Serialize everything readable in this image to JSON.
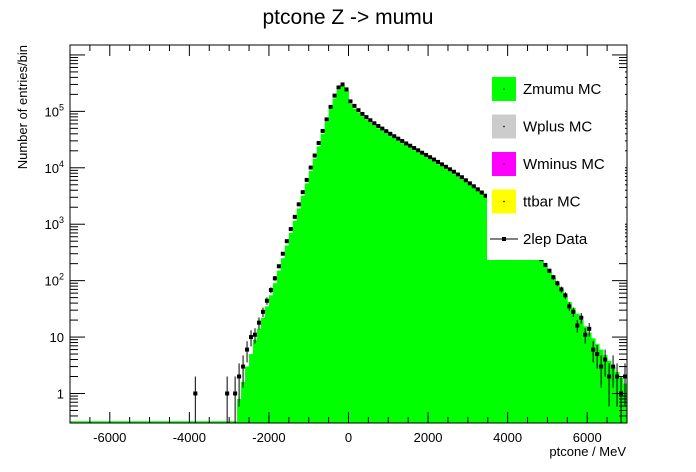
{
  "chart_data": {
    "type": "bar",
    "title": "ptcone Z -> mumu",
    "xlabel": "ptcone / MeV",
    "ylabel": "Number of entries/bin",
    "xlim": [
      -7000,
      7000
    ],
    "ylim": [
      0.3,
      1500000
    ],
    "y_scale": "log",
    "x_ticks": [
      -6000,
      -4000,
      -2000,
      0,
      2000,
      4000,
      6000
    ],
    "y_ticks": [
      {
        "value": 1,
        "label": "1"
      },
      {
        "value": 10,
        "label": "10"
      },
      {
        "value": 100,
        "label": "10^2"
      },
      {
        "value": 1000,
        "label": "10^3"
      },
      {
        "value": 10000,
        "label": "10^4"
      },
      {
        "value": 100000,
        "label": "10^5"
      }
    ],
    "legend_position": "top-right",
    "series": [
      {
        "name": "Zmumu MC",
        "color": "#00ff00",
        "style": "filled-histogram"
      },
      {
        "name": "Wplus MC",
        "color": "#cccccc",
        "style": "filled-histogram"
      },
      {
        "name": "Wminus MC",
        "color": "#ff00ff",
        "style": "filled-histogram"
      },
      {
        "name": "ttbar MC",
        "color": "#ffff00",
        "style": "filled-histogram"
      },
      {
        "name": "2lep Data",
        "color": "#000000",
        "style": "points-with-errors"
      }
    ],
    "bin_width": 100,
    "histogram_bins": [
      [
        -2750,
        0.8
      ],
      [
        -2650,
        1.6
      ],
      [
        -2550,
        3
      ],
      [
        -2450,
        5
      ],
      [
        -2350,
        9
      ],
      [
        -2250,
        14
      ],
      [
        -2150,
        22
      ],
      [
        -2050,
        35
      ],
      [
        -1950,
        55
      ],
      [
        -1850,
        90
      ],
      [
        -1750,
        150
      ],
      [
        -1650,
        250
      ],
      [
        -1550,
        420
      ],
      [
        -1450,
        700
      ],
      [
        -1350,
        1150
      ],
      [
        -1250,
        1900
      ],
      [
        -1150,
        3200
      ],
      [
        -1050,
        5300
      ],
      [
        -950,
        8800
      ],
      [
        -850,
        14500
      ],
      [
        -750,
        24000
      ],
      [
        -650,
        40000
      ],
      [
        -550,
        65000
      ],
      [
        -450,
        110000
      ],
      [
        -350,
        170000
      ],
      [
        -250,
        240000
      ],
      [
        -150,
        280000
      ],
      [
        -50,
        230000
      ],
      [
        50,
        135000
      ],
      [
        150,
        112000
      ],
      [
        250,
        95000
      ],
      [
        350,
        82000
      ],
      [
        450,
        72000
      ],
      [
        550,
        63000
      ],
      [
        650,
        56000
      ],
      [
        750,
        50000
      ],
      [
        850,
        45000
      ],
      [
        950,
        40500
      ],
      [
        1050,
        36500
      ],
      [
        1150,
        33000
      ],
      [
        1250,
        30000
      ],
      [
        1350,
        27200
      ],
      [
        1450,
        24800
      ],
      [
        1550,
        22500
      ],
      [
        1650,
        20500
      ],
      [
        1750,
        18700
      ],
      [
        1850,
        17000
      ],
      [
        1950,
        15500
      ],
      [
        2050,
        14100
      ],
      [
        2150,
        12800
      ],
      [
        2250,
        11600
      ],
      [
        2350,
        10500
      ],
      [
        2450,
        9500
      ],
      [
        2550,
        8600
      ],
      [
        2650,
        7700
      ],
      [
        2750,
        6900
      ],
      [
        2850,
        6200
      ],
      [
        2950,
        5500
      ],
      [
        3050,
        4900
      ],
      [
        3150,
        4350
      ],
      [
        3250,
        3850
      ],
      [
        3350,
        3400
      ],
      [
        3450,
        3000
      ],
      [
        3550,
        2600
      ],
      [
        3650,
        2250
      ],
      [
        3750,
        1950
      ],
      [
        3850,
        1650
      ],
      [
        3950,
        1400
      ],
      [
        4050,
        1180
      ],
      [
        4150,
        980
      ],
      [
        4250,
        810
      ],
      [
        4350,
        665
      ],
      [
        4450,
        540
      ],
      [
        4550,
        440
      ],
      [
        4650,
        355
      ],
      [
        4750,
        285
      ],
      [
        4850,
        228
      ],
      [
        4950,
        180
      ],
      [
        5050,
        142
      ],
      [
        5150,
        112
      ],
      [
        5250,
        88
      ],
      [
        5350,
        69
      ],
      [
        5450,
        54
      ],
      [
        5550,
        42
      ],
      [
        5650,
        33
      ],
      [
        5750,
        26
      ],
      [
        5850,
        20
      ],
      [
        5950,
        15.5
      ],
      [
        6050,
        12
      ],
      [
        6150,
        9.5
      ],
      [
        6250,
        7.5
      ],
      [
        6350,
        6
      ],
      [
        6450,
        4.8
      ],
      [
        6550,
        3.8
      ],
      [
        6650,
        3
      ],
      [
        6750,
        2.4
      ],
      [
        6850,
        1.9
      ],
      [
        6950,
        1.5
      ]
    ],
    "data_points": [
      [
        -3850,
        1
      ],
      [
        -3050,
        1
      ],
      [
        -2850,
        1
      ],
      [
        -2750,
        2
      ],
      [
        -2650,
        3
      ],
      [
        -2550,
        6
      ],
      [
        -2450,
        10
      ],
      [
        -2350,
        11
      ],
      [
        -2250,
        18
      ],
      [
        -2150,
        28
      ],
      [
        -2050,
        44
      ],
      [
        -1950,
        68
      ],
      [
        -1850,
        110
      ],
      [
        -1750,
        180
      ],
      [
        -1650,
        300
      ],
      [
        -1550,
        500
      ],
      [
        -1450,
        820
      ],
      [
        -1350,
        1350
      ],
      [
        -1250,
        2250
      ],
      [
        -1150,
        3700
      ],
      [
        -1050,
        6100
      ],
      [
        -950,
        10100
      ],
      [
        -850,
        16500
      ],
      [
        -750,
        27500
      ],
      [
        -650,
        45000
      ],
      [
        -550,
        72000
      ],
      [
        -450,
        120000
      ],
      [
        -350,
        190000
      ],
      [
        -250,
        265000
      ],
      [
        -150,
        300000
      ],
      [
        -50,
        245000
      ],
      [
        50,
        150000
      ],
      [
        150,
        125000
      ],
      [
        250,
        105000
      ],
      [
        350,
        90000
      ],
      [
        450,
        79000
      ],
      [
        550,
        69500
      ],
      [
        650,
        61500
      ],
      [
        750,
        55000
      ],
      [
        850,
        49500
      ],
      [
        950,
        44500
      ],
      [
        1050,
        40000
      ],
      [
        1150,
        36200
      ],
      [
        1250,
        32800
      ],
      [
        1350,
        29800
      ],
      [
        1450,
        27000
      ],
      [
        1550,
        24600
      ],
      [
        1650,
        22400
      ],
      [
        1750,
        20400
      ],
      [
        1850,
        18500
      ],
      [
        1950,
        16900
      ],
      [
        2050,
        15400
      ],
      [
        2150,
        14000
      ],
      [
        2250,
        12700
      ],
      [
        2350,
        11500
      ],
      [
        2450,
        10400
      ],
      [
        2550,
        9400
      ],
      [
        2650,
        8500
      ],
      [
        2750,
        7600
      ],
      [
        2850,
        6800
      ],
      [
        2950,
        6000
      ],
      [
        3050,
        5300
      ],
      [
        3150,
        4700
      ],
      [
        3250,
        4150
      ],
      [
        3350,
        3650
      ],
      [
        3450,
        3200
      ],
      [
        3550,
        2800
      ],
      [
        3650,
        2400
      ],
      [
        3750,
        2050
      ],
      [
        3850,
        1750
      ],
      [
        3950,
        1480
      ],
      [
        4050,
        1240
      ],
      [
        4150,
        1030
      ],
      [
        4250,
        850
      ],
      [
        4350,
        700
      ],
      [
        4450,
        570
      ],
      [
        4550,
        460
      ],
      [
        4650,
        370
      ],
      [
        4750,
        300
      ],
      [
        4850,
        240
      ],
      [
        4950,
        190
      ],
      [
        5050,
        150
      ],
      [
        5150,
        115
      ],
      [
        5250,
        90
      ],
      [
        5350,
        70
      ],
      [
        5450,
        55
      ],
      [
        5550,
        35
      ],
      [
        5650,
        28
      ],
      [
        5750,
        16
      ],
      [
        5850,
        22
      ],
      [
        5950,
        11
      ],
      [
        6050,
        14
      ],
      [
        6150,
        6
      ],
      [
        6250,
        5
      ],
      [
        6350,
        3
      ],
      [
        6450,
        4
      ],
      [
        6550,
        2
      ],
      [
        6650,
        3
      ],
      [
        6750,
        2
      ],
      [
        6850,
        1
      ],
      [
        6950,
        2
      ]
    ]
  }
}
